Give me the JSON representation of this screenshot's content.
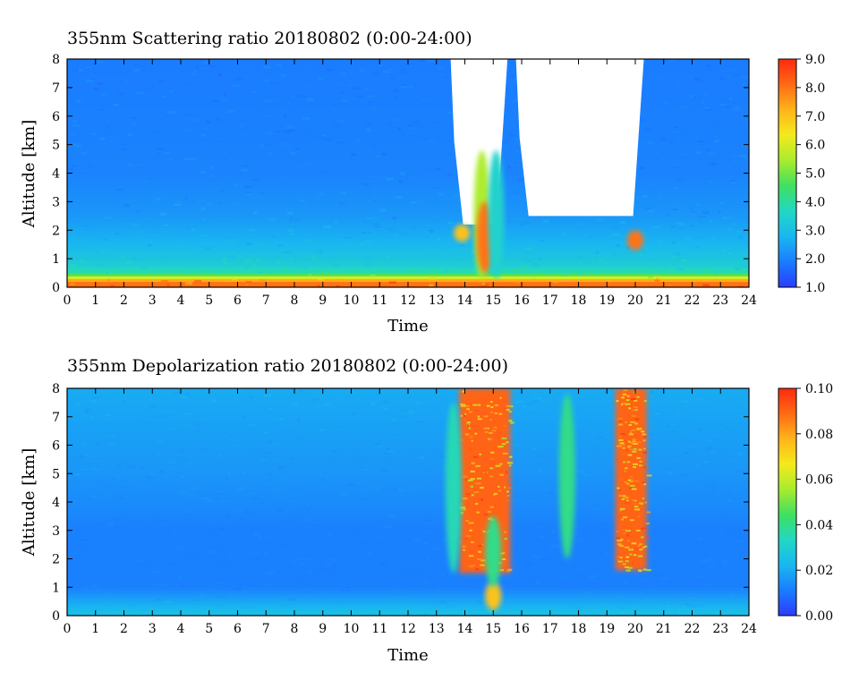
{
  "colorscale": [
    "#2a3cff",
    "#1a7cff",
    "#19b7f0",
    "#22d7c4",
    "#3fe060",
    "#a8ec2e",
    "#f3ea1c",
    "#ffb41a",
    "#ff6a14",
    "#ff2a10"
  ],
  "background_color": "#1e6ef0",
  "cloud_color": "#ffffff",
  "chart_data": [
    {
      "type": "heatmap",
      "title": "355nm Scattering ratio  20180802 (0:00-24:00)",
      "xlabel": "Time",
      "ylabel": "Altitude [km]",
      "xlim": [
        0,
        24
      ],
      "ylim": [
        0,
        8
      ],
      "xticks": [
        "0",
        "1",
        "2",
        "3",
        "4",
        "5",
        "6",
        "7",
        "8",
        "9",
        "10",
        "11",
        "12",
        "13",
        "14",
        "15",
        "16",
        "17",
        "18",
        "19",
        "20",
        "21",
        "22",
        "23",
        "24"
      ],
      "yticks": [
        "0",
        "1",
        "2",
        "3",
        "4",
        "5",
        "6",
        "7",
        "8"
      ],
      "colorbar": {
        "min": 1.0,
        "max": 9.0,
        "ticks": [
          "1.0",
          "2.0",
          "3.0",
          "4.0",
          "5.0",
          "6.0",
          "7.0",
          "8.0",
          "9.0"
        ]
      },
      "profile": [
        {
          "alt": 0.2,
          "value": 8.0
        },
        {
          "alt": 0.5,
          "value": 4.0
        },
        {
          "alt": 0.8,
          "value": 3.3
        },
        {
          "alt": 1.5,
          "value": 2.8
        },
        {
          "alt": 2.5,
          "value": 2.3
        },
        {
          "alt": 4.0,
          "value": 2.0
        },
        {
          "alt": 8.0,
          "value": 1.9
        }
      ],
      "cloud_blanked_regions": [
        {
          "t_start": 13.5,
          "t_end": 15.5,
          "alt_base": 2.2,
          "alt_top": 8.0
        },
        {
          "t_start": 15.8,
          "t_end": 20.3,
          "alt_base": 2.5,
          "alt_top": 8.0
        }
      ],
      "cloud_features": [
        {
          "time": 14.6,
          "alt_base": 0.3,
          "alt_top": 4.8,
          "value": 5.5
        },
        {
          "time": 14.7,
          "alt_base": 0.5,
          "alt_top": 3.0,
          "value": 8.0
        },
        {
          "time": 15.1,
          "alt_base": 0.3,
          "alt_top": 4.8,
          "value": 3.5
        },
        {
          "time": 13.9,
          "alt_base": 1.6,
          "alt_top": 2.2,
          "value": 7.0
        },
        {
          "time": 20.0,
          "alt_base": 1.3,
          "alt_top": 2.0,
          "value": 8.0
        }
      ]
    },
    {
      "type": "heatmap",
      "title": "355nm Depolarization ratio  20180802 (0:00-24:00)",
      "xlabel": "Time",
      "ylabel": "Altitude [km]",
      "xlim": [
        0,
        24
      ],
      "ylim": [
        0,
        8
      ],
      "xticks": [
        "0",
        "1",
        "2",
        "3",
        "4",
        "5",
        "6",
        "7",
        "8",
        "9",
        "10",
        "11",
        "12",
        "13",
        "14",
        "15",
        "16",
        "17",
        "18",
        "19",
        "20",
        "21",
        "22",
        "23",
        "24"
      ],
      "yticks": [
        "0",
        "1",
        "2",
        "3",
        "4",
        "5",
        "6",
        "7",
        "8"
      ],
      "colorbar": {
        "min": 0.0,
        "max": 0.1,
        "ticks": [
          "0.00",
          "0.02",
          "0.04",
          "0.06",
          "0.08",
          "0.10"
        ]
      },
      "profile": [
        {
          "alt": 0.1,
          "value": 0.025
        },
        {
          "alt": 1.0,
          "value": 0.012
        },
        {
          "alt": 3.0,
          "value": 0.012
        },
        {
          "alt": 5.0,
          "value": 0.016
        },
        {
          "alt": 8.0,
          "value": 0.02
        }
      ],
      "cloud_features": [
        {
          "t_start": 13.8,
          "t_end": 15.6,
          "alt_base": 1.5,
          "alt_top": 8.0,
          "value": 0.09
        },
        {
          "t_start": 19.3,
          "t_end": 20.4,
          "alt_base": 1.6,
          "alt_top": 8.0,
          "value": 0.09
        },
        {
          "time": 15.0,
          "alt_base": 0.2,
          "alt_top": 1.2,
          "value": 0.075
        },
        {
          "time": 15.0,
          "alt_base": 1.0,
          "alt_top": 3.5,
          "value": 0.04
        },
        {
          "time": 13.6,
          "alt_base": 1.5,
          "alt_top": 7.5,
          "value": 0.035
        },
        {
          "time": 17.6,
          "alt_base": 2.0,
          "alt_top": 7.8,
          "value": 0.04
        }
      ]
    }
  ]
}
